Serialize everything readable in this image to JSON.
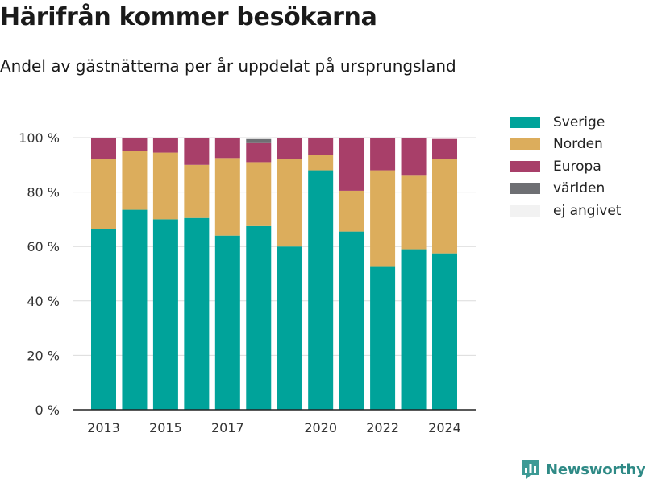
{
  "title": "Härifrån kommer besökarna",
  "subtitle": "Andel av gästnätterna per år uppdelat på ursprungsland",
  "brand": {
    "name": "Newsworthy"
  },
  "colors": {
    "Sverige": "#00a39a",
    "Norden": "#dcad5c",
    "Europa": "#a83f69",
    "världen": "#6e6f73",
    "ej angivet": "#f2f2f2"
  },
  "chart_data": {
    "type": "bar",
    "stacked": true,
    "categories": [
      2013,
      2014,
      2015,
      2016,
      2017,
      2018,
      2019,
      2020,
      2021,
      2022,
      2023,
      2024
    ],
    "x_tick_labels": [
      "2013",
      "2015",
      "2017",
      "2020",
      "2022",
      "2024"
    ],
    "y_tick_labels": [
      "0 %",
      "20 %",
      "40 %",
      "60 %",
      "80 %",
      "100 %"
    ],
    "ylim": [
      0,
      100
    ],
    "grid": true,
    "legend_position": "top-right",
    "series": [
      {
        "name": "Sverige",
        "values": [
          66.5,
          73.5,
          70,
          70.5,
          64,
          67.5,
          60,
          88,
          65.5,
          52.5,
          59,
          57.5
        ]
      },
      {
        "name": "Norden",
        "values": [
          25.5,
          21.5,
          24.5,
          19.5,
          28.5,
          23.5,
          32,
          5.5,
          15,
          35.5,
          27,
          34.5
        ]
      },
      {
        "name": "Europa",
        "values": [
          8,
          5,
          5.5,
          10,
          7.5,
          7,
          8,
          6.5,
          19.5,
          12,
          14,
          7.5
        ]
      },
      {
        "name": "världen",
        "values": [
          0,
          0,
          0,
          0,
          0,
          1.5,
          0,
          0,
          0,
          0,
          0,
          0
        ]
      },
      {
        "name": "ej angivet",
        "values": [
          0,
          0,
          0,
          0,
          0,
          0.5,
          0,
          0,
          0,
          0,
          0,
          0
        ]
      }
    ]
  }
}
